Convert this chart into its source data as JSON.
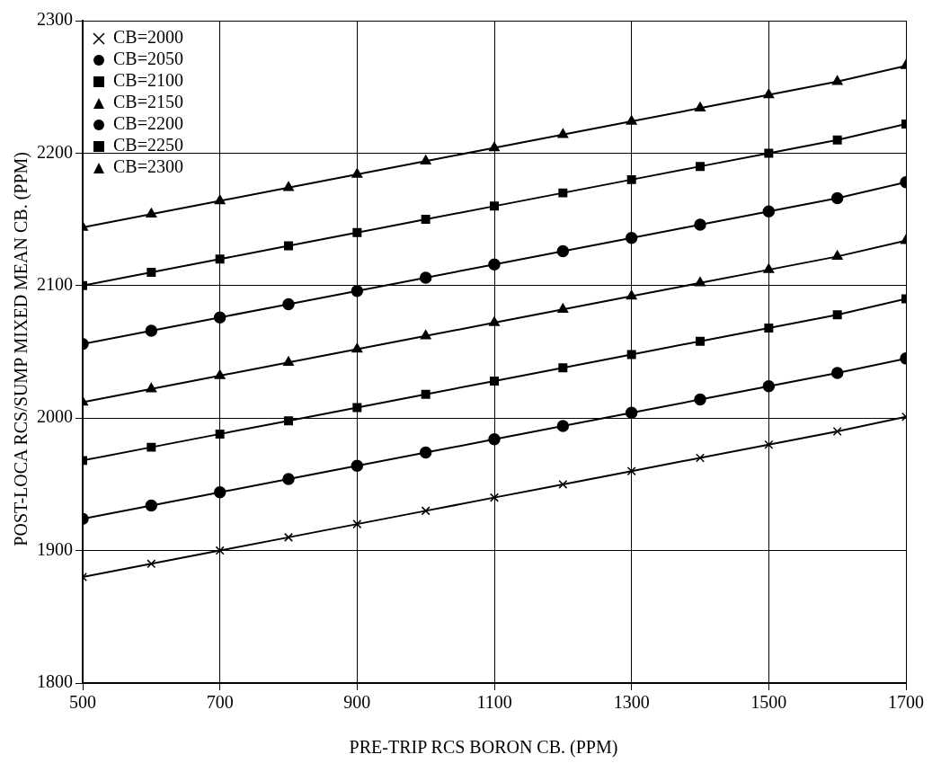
{
  "chart_data": {
    "type": "line",
    "xlabel": "PRE-TRIP RCS BORON CB. (PPM)",
    "ylabel": "POST-LOCA RCS/SUMP MIXED MEAN CB. (PPM)",
    "x": [
      500,
      600,
      700,
      800,
      900,
      1000,
      1100,
      1200,
      1300,
      1400,
      1500,
      1600,
      1700
    ],
    "xlim": [
      500,
      1700
    ],
    "xticks": [
      500,
      700,
      900,
      1100,
      1300,
      1500,
      1700
    ],
    "ylim": [
      1800,
      2300
    ],
    "yticks": [
      1800,
      1900,
      2000,
      2100,
      2200,
      2300
    ],
    "grid": true,
    "legend": "top left",
    "line_style": "solid",
    "series": [
      {
        "name": "CB=2000",
        "color": "#000000",
        "marker": "cross",
        "values": [
          1880,
          1890,
          1900,
          1910,
          1920,
          1930,
          1940,
          1950,
          1960,
          1970,
          1980,
          1990,
          2001
        ]
      },
      {
        "name": "CB=2050",
        "color": "#000000",
        "marker": "circle",
        "values": [
          1924,
          1934,
          1944,
          1954,
          1964,
          1974,
          1984,
          1994,
          2004,
          2014,
          2024,
          2034,
          2045
        ]
      },
      {
        "name": "CB=2100",
        "color": "#000000",
        "marker": "square",
        "values": [
          1968,
          1978,
          1988,
          1998,
          2008,
          2018,
          2028,
          2038,
          2048,
          2058,
          2068,
          2078,
          2090
        ]
      },
      {
        "name": "CB=2150",
        "color": "#000000",
        "marker": "triangle",
        "values": [
          2012,
          2022,
          2032,
          2042,
          2052,
          2062,
          2072,
          2082,
          2092,
          2102,
          2112,
          2122,
          2134
        ]
      },
      {
        "name": "CB=2200",
        "color": "#000000",
        "marker": "circle",
        "values": [
          2056,
          2066,
          2076,
          2086,
          2096,
          2106,
          2116,
          2126,
          2136,
          2146,
          2156,
          2166,
          2178
        ]
      },
      {
        "name": "CB=2250",
        "color": "#000000",
        "marker": "square",
        "values": [
          2100,
          2110,
          2120,
          2130,
          2140,
          2150,
          2160,
          2170,
          2180,
          2190,
          2200,
          2210,
          2222
        ]
      },
      {
        "name": "CB=2300",
        "color": "#000000",
        "marker": "triangle",
        "values": [
          2144,
          2154,
          2164,
          2174,
          2184,
          2194,
          2204,
          2214,
          2224,
          2234,
          2244,
          2254,
          2266
        ]
      }
    ]
  }
}
